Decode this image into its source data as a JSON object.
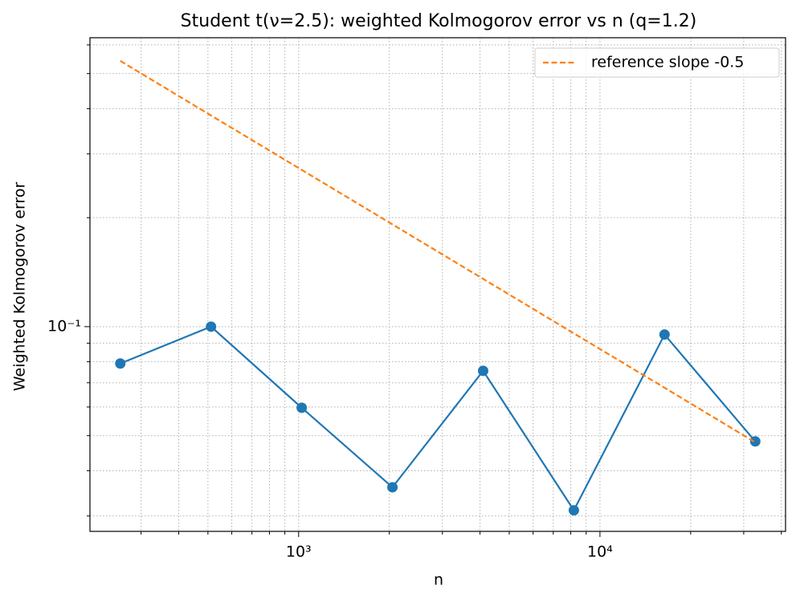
{
  "chart_data": {
    "type": "line",
    "title": "Student t(ν=2.5): weighted Kolmogorov error vs n (q=1.2)",
    "xlabel": "n",
    "ylabel": "Weighted Kolmogorov error",
    "x": [
      256,
      512,
      1024,
      2048,
      4096,
      8192,
      16384,
      32768
    ],
    "series": [
      {
        "color": "#1f77b4",
        "marker": "o",
        "linestyle": "solid",
        "values": [
          0.0791,
          0.1,
          0.0597,
          0.036,
          0.0755,
          0.0311,
          0.0951,
          0.0482
        ]
      },
      {
        "name": "reference slope -0.5",
        "color": "#ff7f0e",
        "linestyle": "dashed",
        "values": [
          0.542,
          0.383,
          0.271,
          0.1916,
          0.1355,
          0.0958,
          0.0678,
          0.0479
        ]
      }
    ],
    "xscale": "log",
    "yscale": "log",
    "xlim": [
      203,
      41300
    ],
    "ylim": [
      0.0272,
      0.628
    ],
    "xticks": [
      {
        "value": 1000,
        "label": "10³"
      },
      {
        "value": 10000,
        "label": "10⁴"
      }
    ],
    "yticks": [
      {
        "value": 0.1,
        "label": "10⁻¹"
      }
    ],
    "xminorticks": [
      300,
      400,
      500,
      600,
      700,
      800,
      900,
      2000,
      3000,
      4000,
      5000,
      6000,
      7000,
      8000,
      9000,
      20000,
      30000,
      40000
    ],
    "yminorticks": [
      0.03,
      0.04,
      0.05,
      0.06,
      0.07,
      0.08,
      0.09,
      0.2,
      0.3,
      0.4,
      0.5,
      0.6
    ],
    "grid": true,
    "legend": "upper right"
  }
}
